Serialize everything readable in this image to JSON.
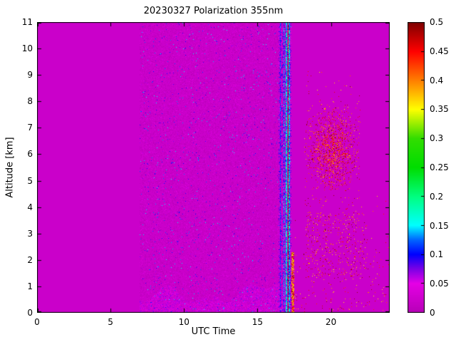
{
  "chart_data": {
    "type": "heatmap",
    "title": "20230327 Polarization 355nm",
    "xlabel": "UTC Time",
    "ylabel": "Altitude [km]",
    "xlim": [
      0,
      24
    ],
    "ylim": [
      0,
      11
    ],
    "grid": false,
    "background_color": "#ffffff",
    "xtick_values": [
      0,
      5,
      10,
      15,
      20
    ],
    "xtick_labels": [
      "0",
      "5",
      "10",
      "15",
      "20"
    ],
    "ytick_values": [
      0,
      1,
      2,
      3,
      4,
      5,
      6,
      7,
      8,
      9,
      10,
      11
    ],
    "ytick_labels": [
      "0",
      "1",
      "2",
      "3",
      "4",
      "5",
      "6",
      "7",
      "8",
      "9",
      "10",
      "11"
    ],
    "colorbar": {
      "position": "right",
      "min": 0,
      "max": 0.5,
      "tick_values": [
        0,
        0.05,
        0.1,
        0.15,
        0.2,
        0.25,
        0.3,
        0.35,
        0.4,
        0.45,
        0.5
      ],
      "tick_labels": [
        "0",
        "0.05",
        "0.1",
        "0.15",
        "0.2",
        "0.25",
        "0.3",
        "0.35",
        "0.4",
        "0.45",
        "0.5"
      ],
      "colormap": [
        {
          "v": 0.0,
          "color": "#b800b8"
        },
        {
          "v": 0.05,
          "color": "#e600e6"
        },
        {
          "v": 0.075,
          "color": "#7a00e6"
        },
        {
          "v": 0.1,
          "color": "#0000ff"
        },
        {
          "v": 0.125,
          "color": "#0066ff"
        },
        {
          "v": 0.15,
          "color": "#00ffff"
        },
        {
          "v": 0.2,
          "color": "#00ff7f"
        },
        {
          "v": 0.25,
          "color": "#00dd00"
        },
        {
          "v": 0.3,
          "color": "#33dd00"
        },
        {
          "v": 0.35,
          "color": "#ffff00"
        },
        {
          "v": 0.4,
          "color": "#ff7f00"
        },
        {
          "v": 0.45,
          "color": "#ff0000"
        },
        {
          "v": 0.5,
          "color": "#7f0000"
        }
      ]
    },
    "background_value": 0,
    "regions": [
      {
        "name": "background",
        "x": [
          0,
          24
        ],
        "y": [
          0,
          11
        ],
        "value": 0,
        "note": "uniform magenta, depolarization ~0"
      },
      {
        "name": "signal-noise-band",
        "x": [
          7,
          17.3
        ],
        "y": [
          0,
          11
        ],
        "density": 0.35,
        "value_range": [
          0,
          0.07
        ],
        "dot_density": 0.015,
        "dot_value_range": [
          0.06,
          0.16
        ],
        "note": "fine speckle during measurement period"
      },
      {
        "name": "boundary-layer",
        "x": [
          7,
          17.5
        ],
        "y": [
          0,
          1.4
        ],
        "density": 0.8,
        "value_range": [
          0,
          0.07
        ],
        "note": "dense near-surface aerosol speckle with wavy top"
      },
      {
        "name": "high-depol-stripe",
        "x": [
          16.42,
          17.3
        ],
        "y": [
          0,
          11
        ],
        "density": 0.55,
        "value_range": [
          0.01,
          0.1
        ],
        "note": "vertical blue/dark stripe ~16.5-17.3 UTC full column"
      },
      {
        "name": "dark-streak",
        "x": [
          17.32,
          17.5
        ],
        "y": [
          0,
          2.3
        ],
        "density": 0.75,
        "value_range": [
          0.33,
          0.5
        ],
        "note": "dark vertical streak near surface ~17.4 UTC"
      },
      {
        "name": "cirrus-patch",
        "x": [
          18.2,
          22
        ],
        "y": [
          4.6,
          7.9
        ],
        "center": [
          20.1,
          6.2
        ],
        "density": 0.4,
        "value_range": [
          0.38,
          0.5
        ],
        "note": "high-depolarization speckle patch ~5-7.5 km, 19-21.5 UTC"
      },
      {
        "name": "low-right-speckle",
        "x": [
          17.5,
          24
        ],
        "y": [
          0,
          4.5
        ],
        "density": 0.02,
        "value_range": [
          0.35,
          0.5
        ]
      },
      {
        "name": "mid-right-speckle",
        "x": [
          18.3,
          22.5
        ],
        "y": [
          1.3,
          3.8
        ],
        "density": 0.045,
        "value_range": [
          0.35,
          0.5
        ]
      },
      {
        "name": "sparse-right-speckle",
        "x": [
          18.2,
          22
        ],
        "y": [
          2,
          9.2
        ],
        "density": 0.01,
        "value_range": [
          0.35,
          0.5
        ]
      }
    ],
    "stripe_lines": [
      {
        "x": 16.55,
        "w": 0.035,
        "v": [
          0.07,
          0.14
        ]
      },
      {
        "x": 16.8,
        "w": 0.03,
        "v": [
          0.09,
          0.16
        ]
      },
      {
        "x": 16.95,
        "w": 0.045,
        "v": [
          0.1,
          0.2
        ]
      },
      {
        "x": 17.08,
        "w": 0.035,
        "v": [
          0.4,
          0.5
        ]
      },
      {
        "x": 17.18,
        "w": 0.05,
        "v": [
          0.09,
          0.18
        ]
      }
    ]
  }
}
